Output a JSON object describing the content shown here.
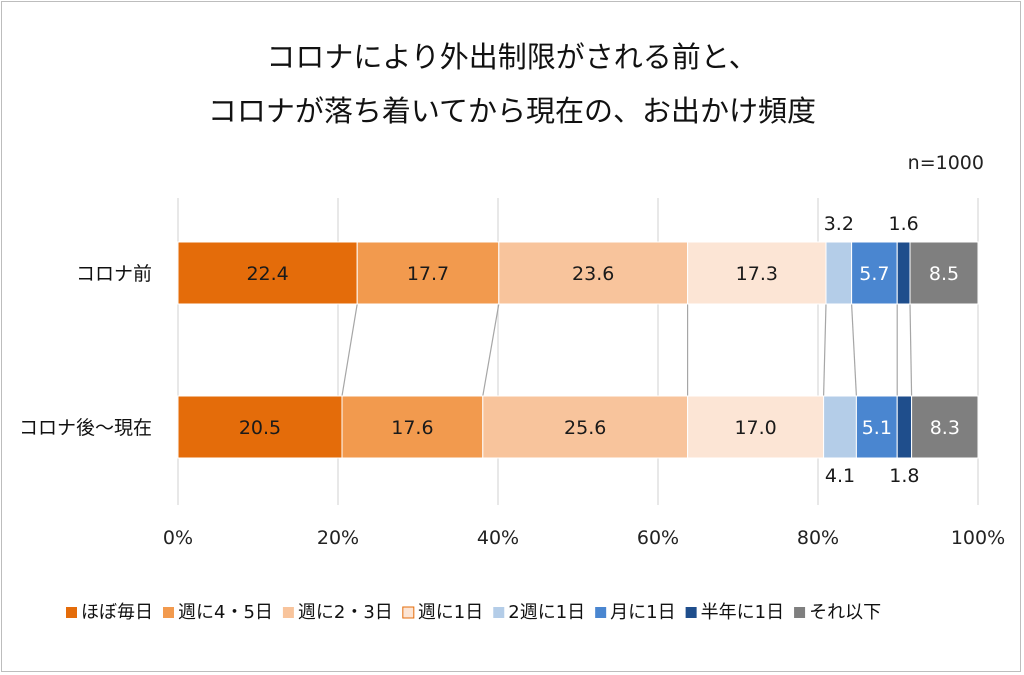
{
  "title_lines": [
    "コロナにより外出制限がされる前と、",
    "コロナが落ち着いてから現在の、お出かけ頻度"
  ],
  "note": "n=1000",
  "chart_data": {
    "type": "bar",
    "orientation": "horizontal",
    "stacked": "100%",
    "categories": [
      "コロナ前",
      "コロナ後～現在"
    ],
    "series": [
      {
        "name": "ほぼ毎日",
        "values": [
          22.4,
          20.5
        ],
        "color": "#E46C0A"
      },
      {
        "name": "週に4・5日",
        "values": [
          17.7,
          17.6
        ],
        "color": "#F29A4E"
      },
      {
        "name": "週に2・3日",
        "values": [
          23.6,
          25.6
        ],
        "color": "#F8C49C"
      },
      {
        "name": "週に1日",
        "values": [
          17.3,
          17.0
        ],
        "color": "#FCE5D5"
      },
      {
        "name": "2週に1日",
        "values": [
          3.2,
          4.1
        ],
        "color": "#B4CDE8"
      },
      {
        "name": "月に1日",
        "values": [
          5.7,
          5.1
        ],
        "color": "#4A86D0"
      },
      {
        "name": "半年に1日",
        "values": [
          1.6,
          1.8
        ],
        "color": "#1F4E8C"
      },
      {
        "name": "それ以下",
        "values": [
          8.5,
          8.3
        ],
        "color": "#7F7F7F"
      }
    ],
    "x_ticks": [
      "0%",
      "20%",
      "40%",
      "60%",
      "80%",
      "100%"
    ],
    "xlim": [
      0,
      100
    ],
    "gridlines": true,
    "legend_position": "bottom",
    "series_lines": true
  }
}
